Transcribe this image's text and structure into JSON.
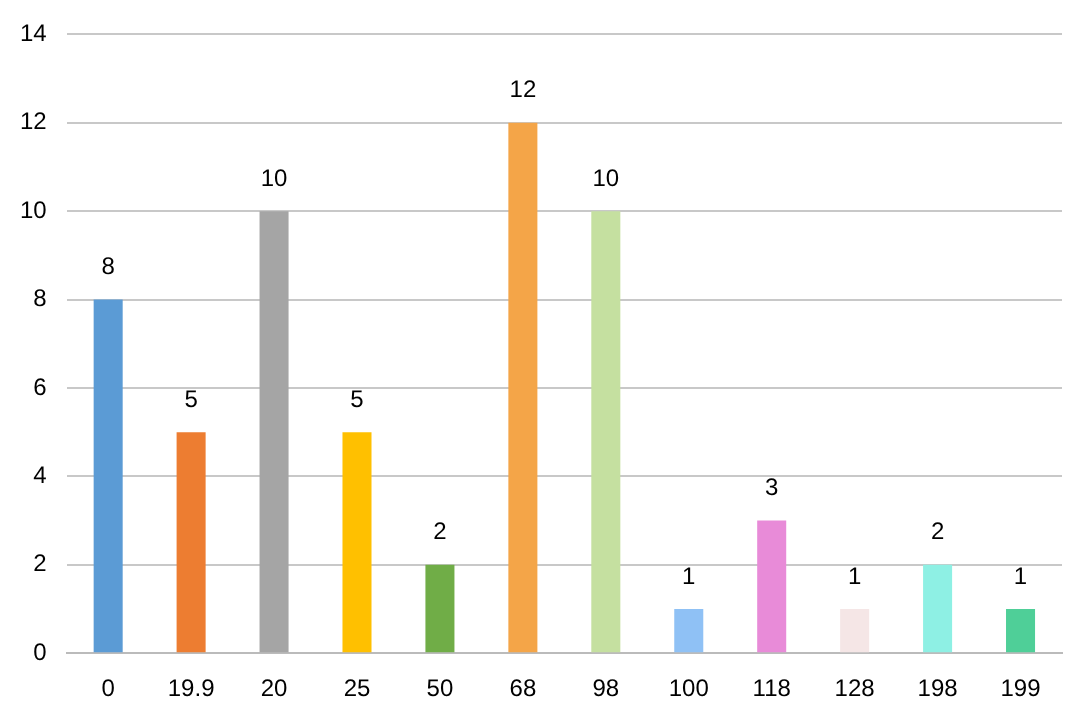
{
  "chart_data": {
    "type": "bar",
    "categories": [
      "0",
      "19.9",
      "20",
      "25",
      "50",
      "68",
      "98",
      "100",
      "118",
      "128",
      "198",
      "199"
    ],
    "values": [
      8,
      5,
      10,
      5,
      2,
      12,
      10,
      1,
      3,
      1,
      2,
      1
    ],
    "colors": [
      "#5b9bd5",
      "#ed7d31",
      "#a5a5a5",
      "#ffc000",
      "#70ad47",
      "#f4a548",
      "#c5e0a0",
      "#8fc1f5",
      "#e88bd8",
      "#f5e6e6",
      "#8ef0e4",
      "#4fcf98"
    ],
    "ylim": [
      0,
      14
    ],
    "yticks": [
      0,
      2,
      4,
      6,
      8,
      10,
      12,
      14
    ],
    "grid": "y",
    "data_labels": true,
    "legend": false
  }
}
